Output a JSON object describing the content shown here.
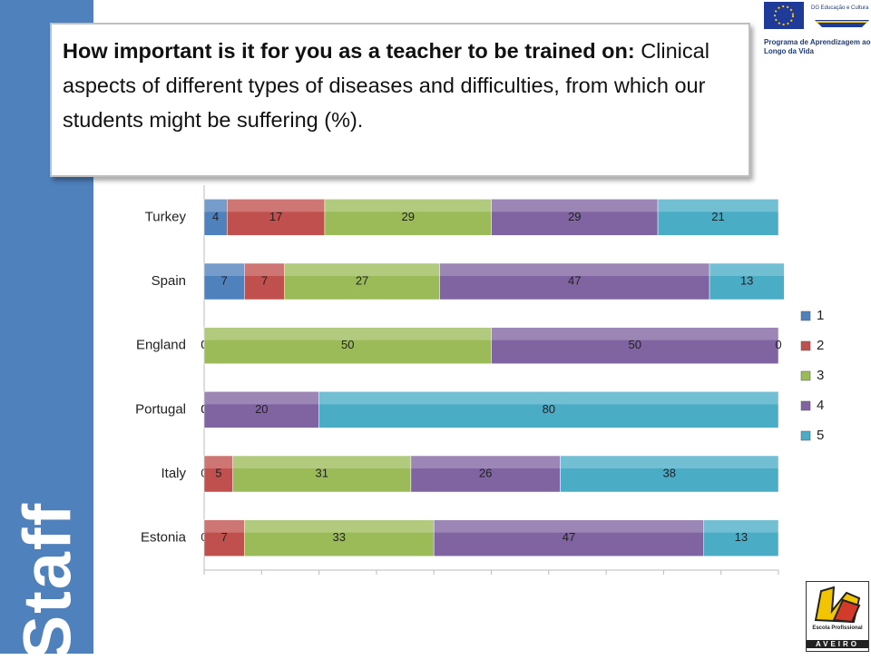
{
  "slide": {
    "side_label": "Staff",
    "logo_eu_line1": "DG Educação e Cultura",
    "logo_eu_line2": "Programa de Aprendizagem ao Longo da Vida",
    "logo_school_line1": "Escola Profissional",
    "logo_school_line2": "AVEIRO"
  },
  "chart_data": {
    "type": "bar",
    "orientation": "horizontal",
    "stacked": true,
    "title_lead": "How important is it for you as a teacher to be trained on:",
    "title": "Clinical aspects of different types of diseases and difficulties, from which our students might be suffering (%).",
    "categories": [
      "Turkey",
      "Spain",
      "England",
      "Portugal",
      "Italy",
      "Estonia"
    ],
    "series": [
      {
        "name": "1",
        "color": "#4f81bd",
        "values": [
          4,
          7,
          0,
          0,
          0,
          0
        ]
      },
      {
        "name": "2",
        "color": "#c0504d",
        "values": [
          17,
          7,
          0,
          0,
          5,
          7
        ]
      },
      {
        "name": "3",
        "color": "#9bbb59",
        "values": [
          29,
          27,
          50,
          0,
          31,
          33
        ]
      },
      {
        "name": "4",
        "color": "#8064a2",
        "values": [
          29,
          47,
          50,
          20,
          26,
          47
        ]
      },
      {
        "name": "5",
        "color": "#4bacc6",
        "values": [
          21,
          13,
          0,
          80,
          38,
          13
        ]
      }
    ],
    "xlim": [
      0,
      100
    ],
    "xticks": [
      0,
      10,
      20,
      30,
      40,
      50,
      60,
      70,
      80,
      90,
      100
    ],
    "legend": "right"
  }
}
